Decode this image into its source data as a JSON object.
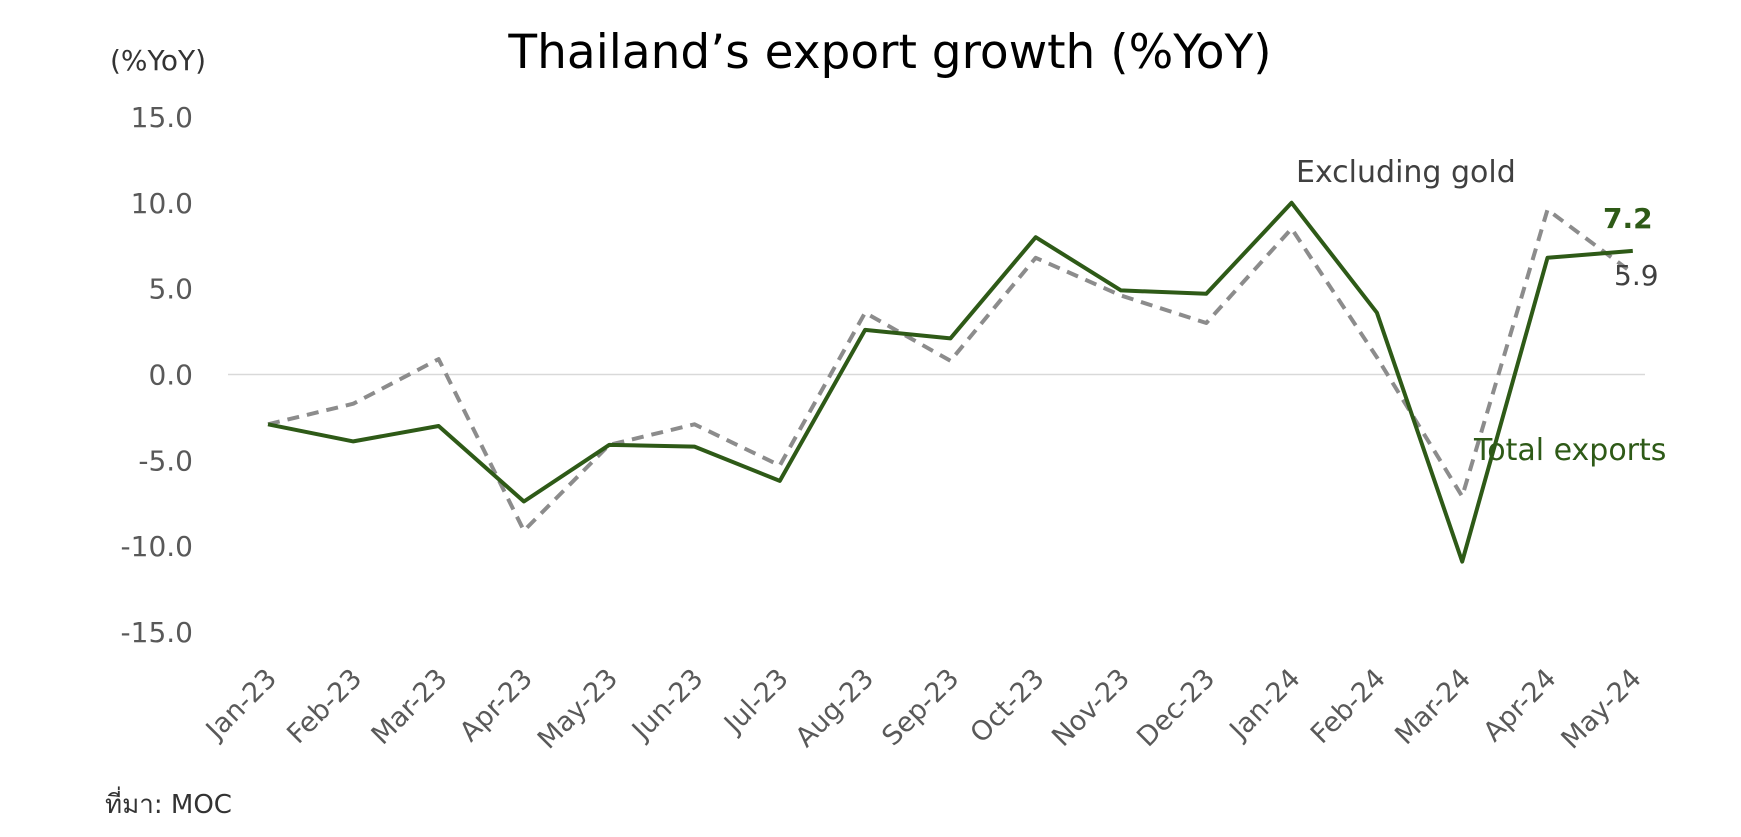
{
  "chart_data": {
    "type": "line",
    "title": "Thailand’s export growth (%YoY)",
    "ylabel": "(%YoY)",
    "ylim": [
      -15,
      15
    ],
    "yticks": [
      15,
      10,
      5,
      0,
      -5,
      -10,
      -15
    ],
    "ytick_labels": [
      "15.0",
      "10.0",
      "5.0",
      "0.0",
      "-5.0",
      "-10.0",
      "-15.0"
    ],
    "categories": [
      "Jan-23",
      "Feb-23",
      "Mar-23",
      "Apr-23",
      "May-23",
      "Jun-23",
      "Jul-23",
      "Aug-23",
      "Sep-23",
      "Oct-23",
      "Nov-23",
      "Dec-23",
      "Jan-24",
      "Feb-24",
      "Mar-24",
      "Apr-24",
      "May-24"
    ],
    "series": [
      {
        "name": "Total exports",
        "color": "#2e5a17",
        "style": "solid",
        "values": [
          -2.9,
          -3.9,
          -3.0,
          -7.4,
          -4.1,
          -4.2,
          -6.2,
          2.6,
          2.1,
          8.0,
          4.9,
          4.7,
          10.0,
          3.6,
          -10.9,
          6.8,
          7.2
        ]
      },
      {
        "name": "Excluding gold",
        "color": "#8c8c8c",
        "style": "dashed",
        "values": [
          -2.9,
          -1.7,
          0.9,
          -9.1,
          -4.1,
          -2.9,
          -5.3,
          3.6,
          0.8,
          6.8,
          4.6,
          3.0,
          8.5,
          1.0,
          -7.1,
          9.6,
          5.9
        ]
      }
    ],
    "last_value_labels": {
      "total": "7.2",
      "excluding_gold": "5.9"
    },
    "grid": false,
    "zero_line": true
  },
  "footer": {
    "source": "ที่มา: MOC"
  }
}
